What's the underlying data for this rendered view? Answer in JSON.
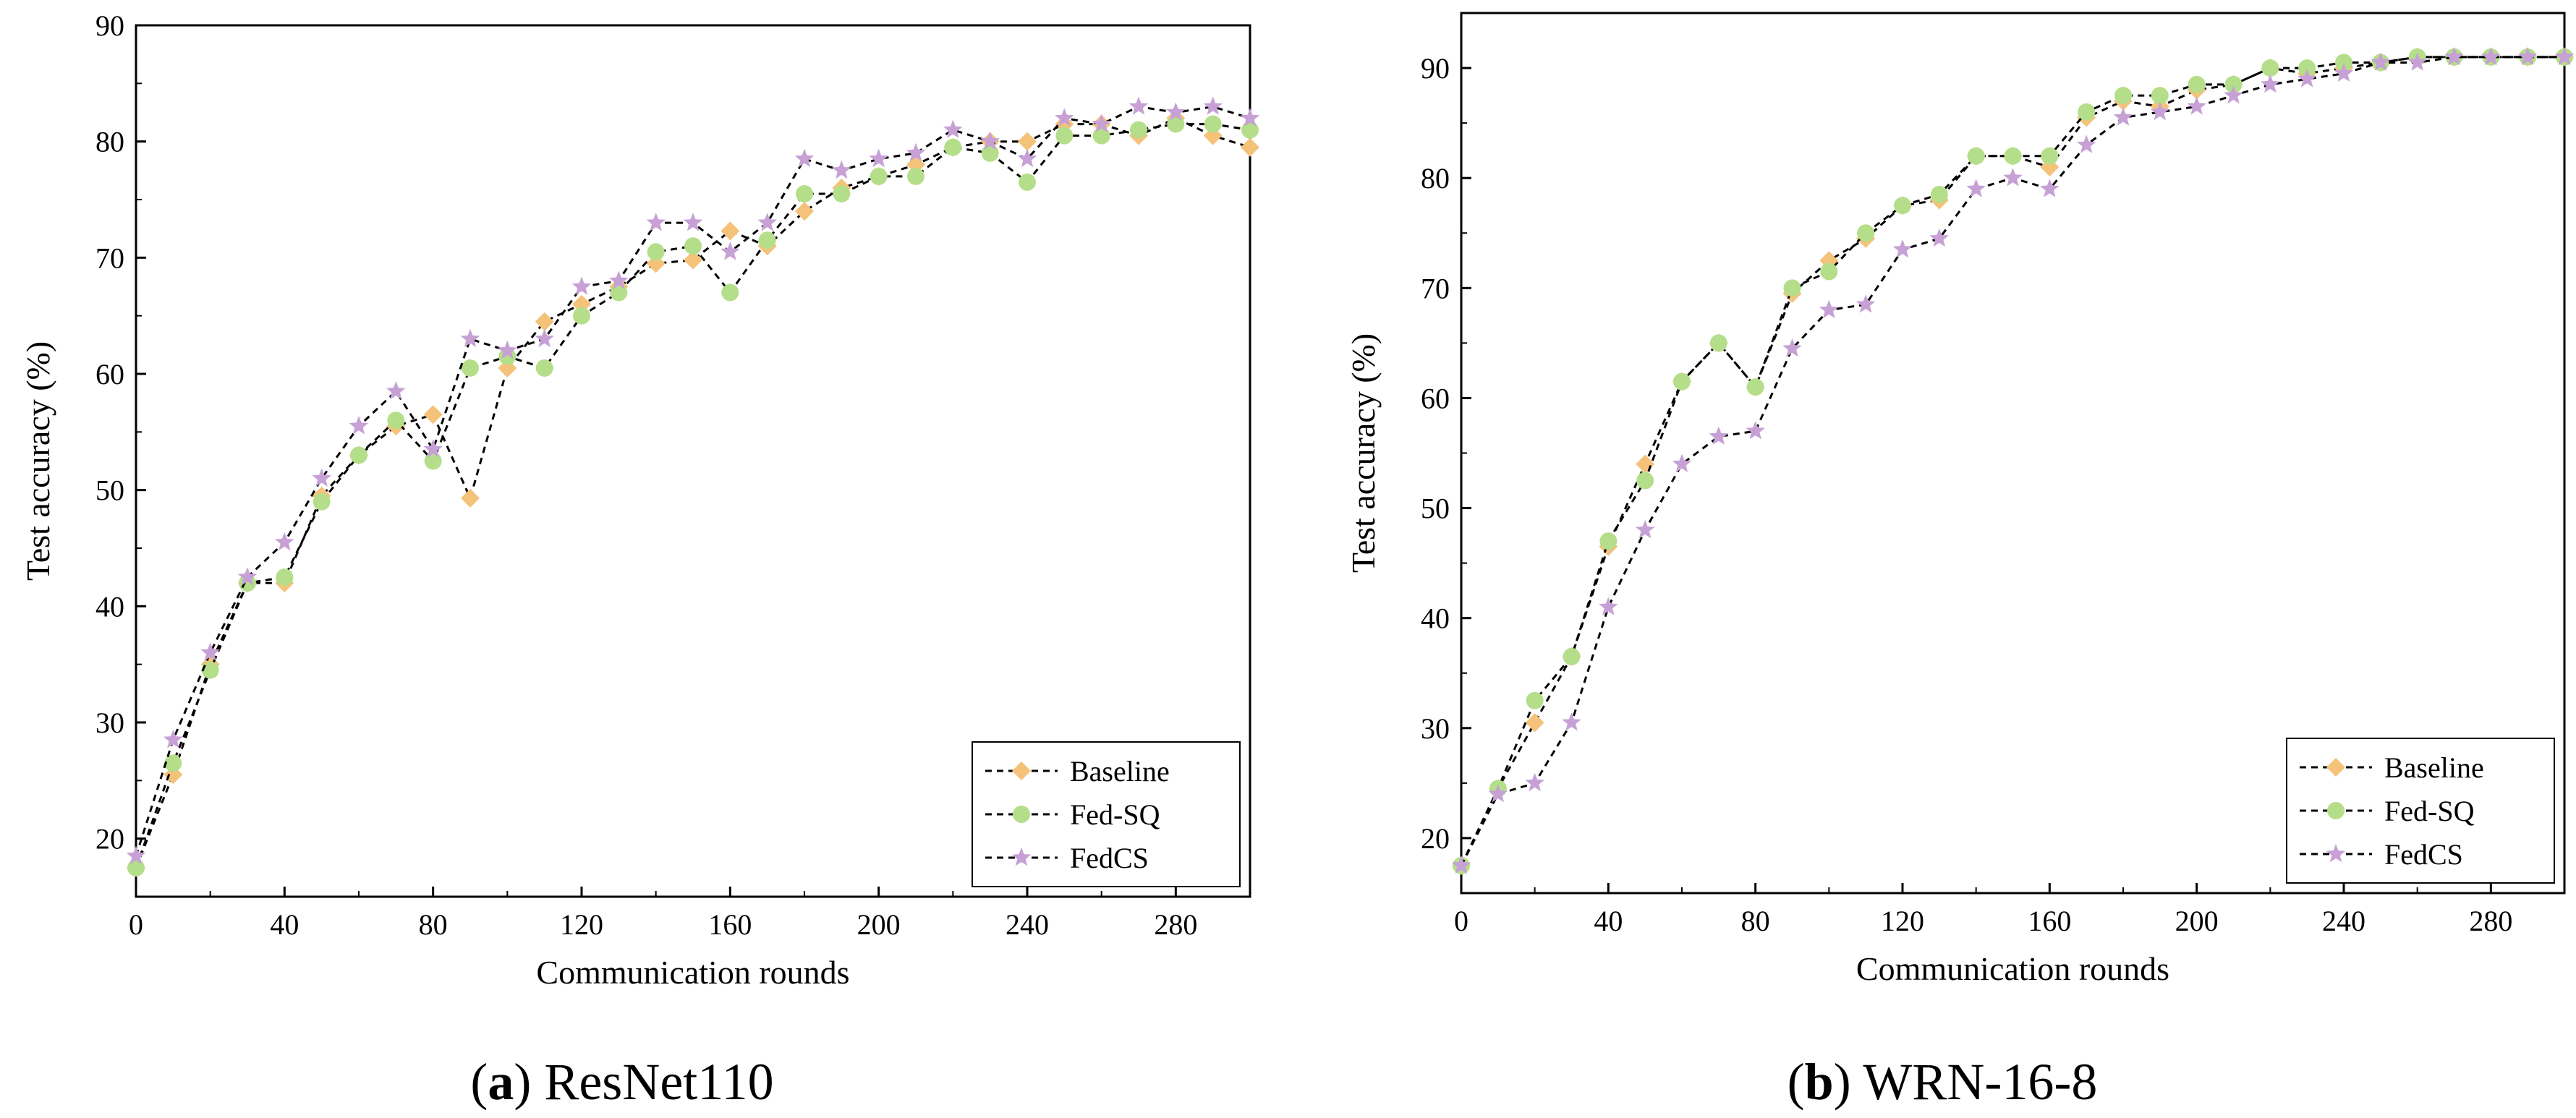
{
  "chart_data": [
    {
      "type": "line",
      "panel_label": "a",
      "caption_title": "ResNet110",
      "xlabel": "Communication rounds",
      "ylabel": "Test accuracy (%)",
      "xlim": [
        0,
        300
      ],
      "ylim": [
        15,
        90
      ],
      "xticks": [
        0,
        40,
        80,
        120,
        160,
        200,
        240,
        280
      ],
      "yticks": [
        20,
        30,
        40,
        50,
        60,
        70,
        80,
        90
      ],
      "legend_position": "bottom-right",
      "x": [
        0,
        10,
        20,
        30,
        40,
        50,
        60,
        70,
        80,
        90,
        100,
        110,
        120,
        130,
        140,
        150,
        160,
        170,
        180,
        190,
        200,
        210,
        220,
        230,
        240,
        250,
        260,
        270,
        280,
        290,
        300
      ],
      "series": [
        {
          "name": "Baseline",
          "marker": "diamond",
          "color": "#F5C27A",
          "values": [
            17.5,
            25.5,
            35.0,
            42.0,
            42.0,
            49.5,
            53.0,
            55.5,
            56.5,
            49.3,
            60.5,
            64.5,
            66.0,
            67.5,
            69.5,
            69.8,
            72.3,
            71.0,
            74.0,
            76.0,
            77.0,
            78.0,
            79.5,
            80.0,
            80.0,
            81.5,
            81.5,
            80.5,
            82.0,
            80.5,
            79.5
          ]
        },
        {
          "name": "Fed-SQ",
          "marker": "circle",
          "color": "#B5DE8A",
          "values": [
            17.5,
            26.5,
            34.5,
            42.0,
            42.5,
            49.0,
            53.0,
            56.0,
            52.5,
            60.5,
            61.5,
            60.5,
            65.0,
            67.0,
            70.5,
            71.0,
            67.0,
            71.5,
            75.5,
            75.5,
            77.0,
            77.0,
            79.5,
            79.0,
            76.5,
            80.5,
            80.5,
            81.0,
            81.5,
            81.5,
            81.0
          ]
        },
        {
          "name": "FedCS",
          "marker": "star",
          "color": "#C7A1D6",
          "values": [
            18.5,
            28.5,
            36.0,
            42.5,
            45.5,
            51.0,
            55.5,
            58.5,
            53.5,
            63.0,
            62.0,
            63.0,
            67.5,
            68.0,
            73.0,
            73.0,
            70.5,
            73.0,
            78.5,
            77.5,
            78.5,
            79.0,
            81.0,
            80.0,
            78.5,
            82.0,
            81.5,
            83.0,
            82.5,
            83.0,
            82.0
          ]
        }
      ]
    },
    {
      "type": "line",
      "panel_label": "b",
      "caption_title": "WRN-16-8",
      "xlabel": "Communication rounds",
      "ylabel": "Test accuracy (%)",
      "xlim": [
        0,
        300
      ],
      "ylim": [
        15,
        95
      ],
      "xticks": [
        0,
        40,
        80,
        120,
        160,
        200,
        240,
        280
      ],
      "yticks": [
        20,
        30,
        40,
        50,
        60,
        70,
        80,
        90
      ],
      "legend_position": "bottom-right",
      "x": [
        0,
        10,
        20,
        30,
        40,
        50,
        60,
        70,
        80,
        90,
        100,
        110,
        120,
        130,
        140,
        150,
        160,
        170,
        180,
        190,
        200,
        210,
        220,
        230,
        240,
        250,
        260,
        270,
        280,
        290,
        300
      ],
      "series": [
        {
          "name": "Baseline",
          "marker": "diamond",
          "color": "#F5C27A",
          "values": [
            17.5,
            24.5,
            30.5,
            36.5,
            46.5,
            54.0,
            61.5,
            65.0,
            61.0,
            69.5,
            72.5,
            74.5,
            77.5,
            78.0,
            82.0,
            82.0,
            81.0,
            85.5,
            87.0,
            86.5,
            88.0,
            88.5,
            90.0,
            89.5,
            90.0,
            90.5,
            91.0,
            91.0,
            91.0,
            91.0,
            91.0
          ]
        },
        {
          "name": "Fed-SQ",
          "marker": "circle",
          "color": "#B5DE8A",
          "values": [
            17.5,
            24.5,
            32.5,
            36.5,
            47.0,
            52.5,
            61.5,
            65.0,
            61.0,
            70.0,
            71.5,
            75.0,
            77.5,
            78.5,
            82.0,
            82.0,
            82.0,
            86.0,
            87.5,
            87.5,
            88.5,
            88.5,
            90.0,
            90.0,
            90.5,
            90.5,
            91.0,
            91.0,
            91.0,
            91.0,
            91.0
          ]
        },
        {
          "name": "FedCS",
          "marker": "star",
          "color": "#C7A1D6",
          "values": [
            17.5,
            24.0,
            25.0,
            30.5,
            41.0,
            48.0,
            54.0,
            56.5,
            57.0,
            64.5,
            68.0,
            68.5,
            73.5,
            74.5,
            79.0,
            80.0,
            79.0,
            83.0,
            85.5,
            86.0,
            86.5,
            87.5,
            88.5,
            89.0,
            89.5,
            90.5,
            90.5,
            91.0,
            91.0,
            91.0,
            91.0
          ]
        }
      ]
    }
  ]
}
